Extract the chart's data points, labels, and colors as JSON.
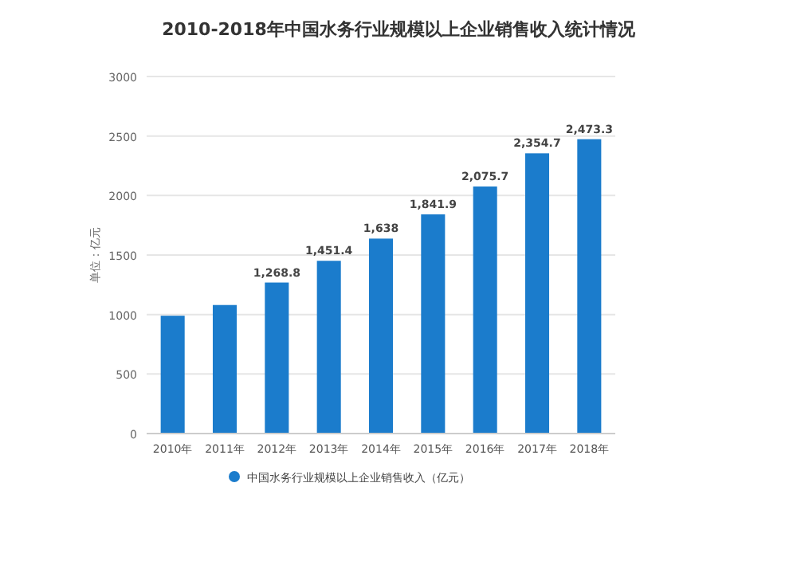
{
  "chart_data": {
    "type": "bar",
    "title": "2010-2018年中国水务行业规模以上企业销售收入统计情况",
    "ylabel": "单位：亿元",
    "categories": [
      "2010年",
      "2011年",
      "2012年",
      "2013年",
      "2014年",
      "2015年",
      "2016年",
      "2017年",
      "2018年"
    ],
    "series": [
      {
        "name": "中国水务行业规模以上企业销售收入（亿元）",
        "color": "#1b7ccc",
        "values": [
          990,
          1080,
          1268.8,
          1451.4,
          1638,
          1841.9,
          2075.7,
          2354.7,
          2473.3
        ],
        "value_labels": [
          null,
          null,
          "1,268.8",
          "1,451.4",
          "1,638",
          "1,841.9",
          "2,075.7",
          "2,354.7",
          "2,473.3"
        ]
      }
    ],
    "ylim": [
      0,
      3000
    ],
    "yticks": [
      0,
      500,
      1000,
      1500,
      2000,
      2500,
      3000
    ],
    "grid": "y",
    "legend": "bottom"
  }
}
